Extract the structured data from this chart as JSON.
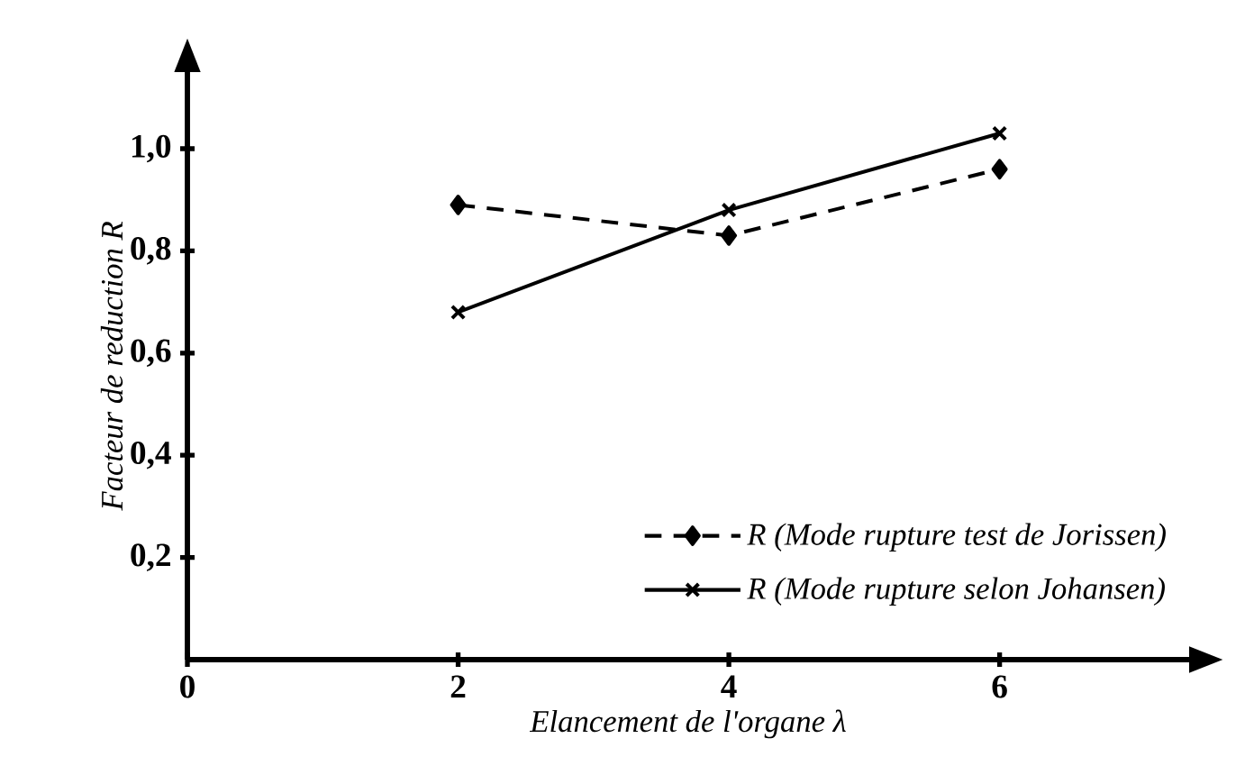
{
  "chart_data": {
    "type": "line",
    "xlabel": "Elancement de l'organe λ",
    "ylabel": "Facteur de reduction R",
    "x": [
      2,
      4,
      6
    ],
    "series": [
      {
        "name": "R (Mode rupture test de Jorissen)",
        "color": "#000000",
        "marker": "diamond",
        "line_style": "dashed",
        "values": [
          0.89,
          0.83,
          0.96
        ]
      },
      {
        "name": "R (Mode rupture selon Johansen)",
        "color": "#000000",
        "marker": "cross",
        "line_style": "solid",
        "values": [
          0.68,
          0.88,
          1.03
        ]
      }
    ],
    "xlim": [
      0,
      7.4
    ],
    "ylim": [
      0,
      1.15
    ],
    "xticks": [
      0,
      2,
      4,
      6
    ],
    "yticks": [
      {
        "value": 0.2,
        "label": "0,2"
      },
      {
        "value": 0.4,
        "label": "0,4"
      },
      {
        "value": 0.6,
        "label": "0,6"
      },
      {
        "value": 0.8,
        "label": "0,8"
      },
      {
        "value": 1.0,
        "label": "1,0"
      }
    ],
    "legend": "bottom right"
  }
}
